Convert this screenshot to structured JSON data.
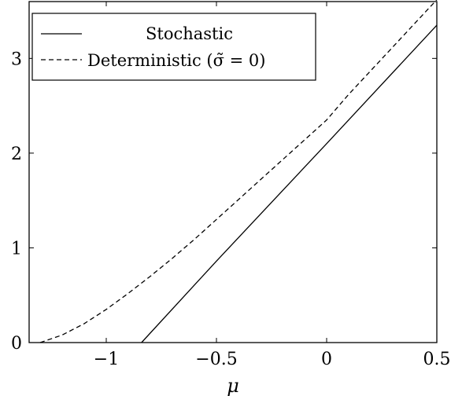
{
  "chart_data": {
    "type": "line",
    "xlabel": "μ",
    "ylabel": "",
    "xlim": [
      -1.35,
      0.5
    ],
    "ylim": [
      0,
      3.6
    ],
    "xticks": [
      {
        "value": -1,
        "label": "−1"
      },
      {
        "value": -0.5,
        "label": "−0.5"
      },
      {
        "value": 0,
        "label": "0"
      },
      {
        "value": 0.5,
        "label": "0.5"
      }
    ],
    "yticks": [
      {
        "value": 0,
        "label": "0"
      },
      {
        "value": 1,
        "label": "1"
      },
      {
        "value": 2,
        "label": "2"
      },
      {
        "value": 3,
        "label": "3"
      }
    ],
    "grid": false,
    "legend": "top-left",
    "series": [
      {
        "name": "Stochastic",
        "style": "solid",
        "x": [
          -0.84,
          -0.5,
          0,
          0.5
        ],
        "y": [
          0,
          0.86,
          2.1,
          3.35
        ]
      },
      {
        "name": "Deterministic (σ̃ = 0)",
        "style": "dashed",
        "x": [
          -1.3,
          -1.2,
          -1.1,
          -1.0,
          -0.9,
          -0.8,
          -0.7,
          -0.6,
          -0.5,
          -0.4,
          -0.3,
          -0.2,
          -0.1,
          0,
          0.1,
          0.2,
          0.3,
          0.4,
          0.5
        ],
        "y": [
          0,
          0.08,
          0.2,
          0.35,
          0.52,
          0.7,
          0.89,
          1.09,
          1.3,
          1.51,
          1.72,
          1.93,
          2.14,
          2.35,
          2.62,
          2.87,
          3.12,
          3.37,
          3.62
        ]
      }
    ]
  }
}
